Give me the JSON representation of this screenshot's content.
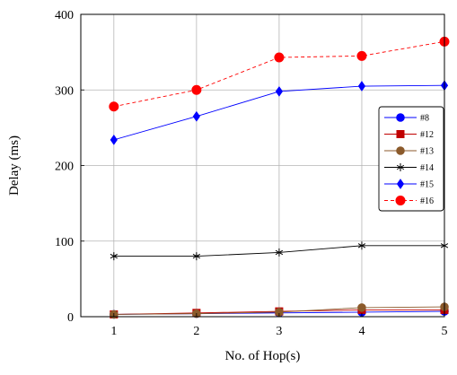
{
  "chart_data": {
    "type": "line",
    "title": "",
    "xlabel": "No. of Hop(s)",
    "ylabel": "Delay (ms)",
    "x": [
      1,
      2,
      3,
      4,
      5
    ],
    "xlim": [
      0.6,
      5
    ],
    "ylim": [
      0,
      400
    ],
    "xticks": [
      "1",
      "2",
      "3",
      "4",
      "5"
    ],
    "yticks": [
      "0",
      "100",
      "200",
      "300",
      "400"
    ],
    "grid": true,
    "legend_position": "right",
    "series": [
      {
        "name": "#8",
        "values": [
          3,
          4,
          5,
          6,
          7
        ],
        "color": "#0000ff",
        "marker": "circle",
        "dash": "solid"
      },
      {
        "name": "#12",
        "values": [
          3,
          5,
          7,
          9,
          9
        ],
        "color": "#c00000",
        "marker": "square",
        "dash": "solid"
      },
      {
        "name": "#13",
        "values": [
          3,
          4,
          6,
          12,
          13
        ],
        "color": "#8b5a2b",
        "marker": "circle",
        "dash": "solid"
      },
      {
        "name": "#14",
        "values": [
          80,
          80,
          85,
          94,
          94
        ],
        "color": "#000000",
        "marker": "star",
        "dash": "solid"
      },
      {
        "name": "#15",
        "values": [
          234,
          265,
          298,
          305,
          306
        ],
        "color": "#0000ff",
        "marker": "diamond",
        "dash": "solid"
      },
      {
        "name": "#16",
        "values": [
          278,
          300,
          343,
          345,
          364
        ],
        "color": "#ff0000",
        "marker": "circle-red",
        "dash": "dashed"
      }
    ]
  }
}
